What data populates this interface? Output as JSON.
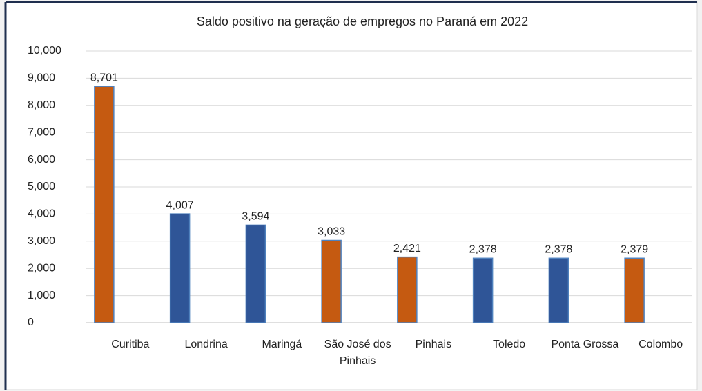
{
  "chart_data": {
    "type": "bar",
    "title": "Saldo positivo na geração de empregos no Paraná em 2022",
    "categories": [
      "Curitiba",
      "Londrina",
      "Maringá",
      "São José dos Pinhais",
      "Pinhais",
      "Toledo",
      "Ponta Grossa",
      "Colombo"
    ],
    "values": [
      8701,
      4007,
      3594,
      3033,
      2421,
      2378,
      2378,
      2379
    ],
    "value_labels": [
      "8,701",
      "4,007",
      "3,594",
      "3,033",
      "2,421",
      "2,378",
      "2,378",
      "2,379"
    ],
    "colors": [
      "#c55a11",
      "#2f5597",
      "#2f5597",
      "#c55a11",
      "#c55a11",
      "#2f5597",
      "#2f5597",
      "#c55a11"
    ],
    "ylim": [
      0,
      10000
    ],
    "yticks": [
      0,
      {
        "value": 1000,
        "label": "1,000"
      },
      {
        "value": 2000,
        "label": "2,000"
      },
      {
        "value": 3000,
        "label": "3,000"
      },
      {
        "value": 4000,
        "label": "4,000"
      },
      {
        "value": 5000,
        "label": "5,000"
      },
      {
        "value": 6000,
        "label": "6,000"
      },
      {
        "value": 7000,
        "label": "7,000"
      },
      {
        "value": 8000,
        "label": "8,000"
      },
      {
        "value": 9000,
        "label": "9,000"
      },
      {
        "value": 10000,
        "label": "10,000"
      }
    ],
    "grid": true
  }
}
